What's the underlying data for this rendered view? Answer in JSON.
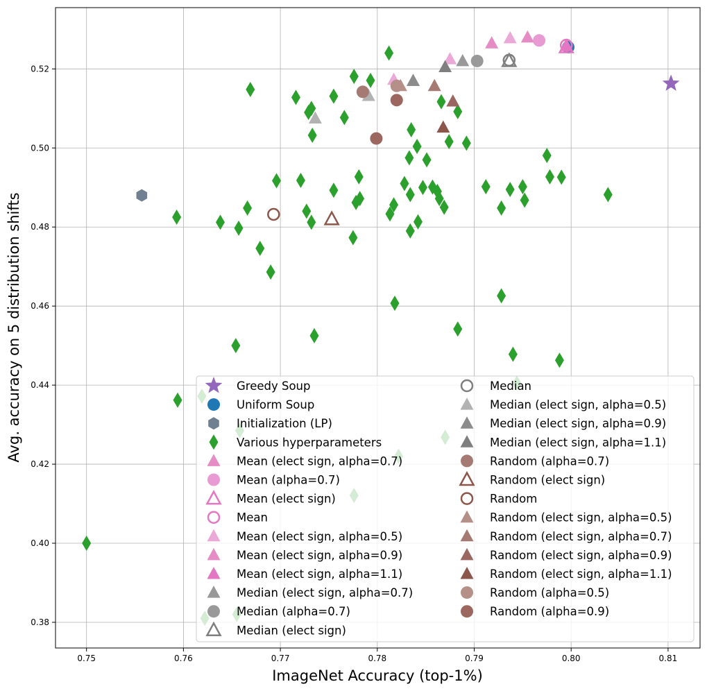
{
  "chart_data": {
    "type": "scatter",
    "xlabel": "ImageNet Accuracy (top-1%)",
    "ylabel": "Avg. accuracy on 5 distribution shifts",
    "xlim": [
      0.7468,
      0.8133
    ],
    "ylim": [
      0.3735,
      0.5355
    ],
    "xticks": [
      0.75,
      0.76,
      0.77,
      0.78,
      0.79,
      0.8,
      0.81
    ],
    "xtick_labels": [
      "0.75",
      "0.76",
      "0.77",
      "0.78",
      "0.79",
      "0.80",
      "0.81"
    ],
    "yticks": [
      0.38,
      0.4,
      0.42,
      0.44,
      0.46,
      0.48,
      0.5,
      0.52
    ],
    "ytick_labels": [
      "0.38",
      "0.40",
      "0.42",
      "0.44",
      "0.46",
      "0.48",
      "0.50",
      "0.52"
    ],
    "grid": true,
    "legend_position": "lower-right",
    "series": [
      {
        "name": "Greedy Soup",
        "marker": "star",
        "color": "#9467bd",
        "fill": true,
        "points": [
          [
            0.8103,
            0.5163
          ]
        ]
      },
      {
        "name": "Uniform Soup",
        "marker": "circle",
        "color": "#1f77b4",
        "fill": true,
        "points": [
          [
            0.7997,
            0.5255
          ]
        ]
      },
      {
        "name": "Initialization (LP)",
        "marker": "hexagon",
        "color": "#708090",
        "fill": true,
        "points": [
          [
            0.7557,
            0.488
          ]
        ]
      },
      {
        "name": "Various hyperparameters",
        "marker": "thin_diamond",
        "color": "#2ca02c",
        "fill": true,
        "points": [
          [
            0.75,
            0.4
          ],
          [
            0.7593,
            0.4825
          ],
          [
            0.7594,
            0.4362
          ],
          [
            0.7619,
            0.4372
          ],
          [
            0.7622,
            0.381
          ],
          [
            0.7638,
            0.4812
          ],
          [
            0.7654,
            0.45
          ],
          [
            0.7655,
            0.382
          ],
          [
            0.7657,
            0.4797
          ],
          [
            0.7658,
            0.4285
          ],
          [
            0.7666,
            0.4848
          ],
          [
            0.7669,
            0.5148
          ],
          [
            0.7679,
            0.4746
          ],
          [
            0.769,
            0.4686
          ],
          [
            0.7696,
            0.4917
          ],
          [
            0.7716,
            0.5128
          ],
          [
            0.7721,
            0.4918
          ],
          [
            0.7727,
            0.484
          ],
          [
            0.7729,
            0.509
          ],
          [
            0.7732,
            0.51
          ],
          [
            0.7732,
            0.4812
          ],
          [
            0.7733,
            0.5032
          ],
          [
            0.7735,
            0.4525
          ],
          [
            0.7755,
            0.5131
          ],
          [
            0.7755,
            0.4893
          ],
          [
            0.7766,
            0.5077
          ],
          [
            0.7775,
            0.4773
          ],
          [
            0.7776,
            0.5181
          ],
          [
            0.7776,
            0.4121
          ],
          [
            0.7778,
            0.4862
          ],
          [
            0.7781,
            0.4927
          ],
          [
            0.7782,
            0.4872
          ],
          [
            0.7793,
            0.5171
          ],
          [
            0.7812,
            0.524
          ],
          [
            0.7813,
            0.4833
          ],
          [
            0.7817,
            0.4856
          ],
          [
            0.7818,
            0.4607
          ],
          [
            0.7822,
            0.422
          ],
          [
            0.7828,
            0.491
          ],
          [
            0.7833,
            0.4975
          ],
          [
            0.7834,
            0.4882
          ],
          [
            0.7834,
            0.479
          ],
          [
            0.7835,
            0.5046
          ],
          [
            0.7841,
            0.5004
          ],
          [
            0.7842,
            0.4813
          ],
          [
            0.7847,
            0.49
          ],
          [
            0.7851,
            0.497
          ],
          [
            0.7857,
            0.4901
          ],
          [
            0.7862,
            0.489
          ],
          [
            0.7864,
            0.4872
          ],
          [
            0.7866,
            0.5117
          ],
          [
            0.7869,
            0.485
          ],
          [
            0.787,
            0.4268
          ],
          [
            0.7874,
            0.5016
          ],
          [
            0.7883,
            0.4542
          ],
          [
            0.7883,
            0.5092
          ],
          [
            0.7892,
            0.5012
          ],
          [
            0.7912,
            0.4902
          ],
          [
            0.7928,
            0.4848
          ],
          [
            0.7928,
            0.4626
          ],
          [
            0.7937,
            0.4895
          ],
          [
            0.794,
            0.4478
          ],
          [
            0.7944,
            0.4405
          ],
          [
            0.795,
            0.4902
          ],
          [
            0.7952,
            0.4868
          ],
          [
            0.7975,
            0.4981
          ],
          [
            0.7978,
            0.4927
          ],
          [
            0.7988,
            0.4463
          ],
          [
            0.799,
            0.4926
          ],
          [
            0.8038,
            0.4882
          ]
        ]
      },
      {
        "name": "Mean (elect sign, alpha=0.7)",
        "marker": "triangle",
        "color": "#e58cc5",
        "fill": true,
        "points": [
          [
            0.7918,
            0.5265
          ]
        ]
      },
      {
        "name": "Mean (alpha=0.7)",
        "marker": "circle",
        "color": "#e89ad2",
        "fill": true,
        "points": [
          [
            0.7967,
            0.5272
          ]
        ]
      },
      {
        "name": "Mean (elect sign)",
        "marker": "triangle",
        "color": "#e377c2",
        "fill": false,
        "points": [
          [
            0.7995,
            0.5255
          ]
        ]
      },
      {
        "name": "Mean",
        "marker": "circle",
        "color": "#e377c2",
        "fill": false,
        "points": [
          [
            0.7995,
            0.526
          ]
        ]
      },
      {
        "name": "Mean (elect sign, alpha=0.5)",
        "marker": "triangle",
        "color": "#eaa9d6",
        "fill": true,
        "points": [
          [
            0.7875,
            0.5225
          ],
          [
            0.7937,
            0.5278
          ],
          [
            0.7817,
            0.5173
          ]
        ]
      },
      {
        "name": "Mean (elect sign, alpha=0.9)",
        "marker": "triangle",
        "color": "#e58cc5",
        "fill": true,
        "points": [
          [
            0.7955,
            0.528
          ]
        ]
      },
      {
        "name": "Mean (elect sign, alpha=1.1)",
        "marker": "triangle",
        "color": "#e377c2",
        "fill": true,
        "points": [
          [
            0.7995,
            0.5258
          ]
        ]
      },
      {
        "name": "Median (elect sign, alpha=0.7)",
        "marker": "triangle",
        "color": "#999999",
        "fill": true,
        "points": [
          [
            0.7888,
            0.522
          ],
          [
            0.7837,
            0.517
          ]
        ]
      },
      {
        "name": "Median (alpha=0.7)",
        "marker": "circle",
        "color": "#999999",
        "fill": true,
        "points": [
          [
            0.7903,
            0.522
          ]
        ]
      },
      {
        "name": "Median (elect sign)",
        "marker": "triangle",
        "color": "#7f7f7f",
        "fill": false,
        "points": [
          [
            0.7936,
            0.522
          ]
        ]
      },
      {
        "name": "Median",
        "marker": "circle",
        "color": "#7f7f7f",
        "fill": false,
        "points": [
          [
            0.7936,
            0.5222
          ]
        ]
      },
      {
        "name": "Median (elect sign, alpha=0.5)",
        "marker": "triangle",
        "color": "#b2b2b2",
        "fill": true,
        "points": [
          [
            0.7736,
            0.5075
          ],
          [
            0.7791,
            0.5132
          ]
        ]
      },
      {
        "name": "Median (elect sign, alpha=0.9)",
        "marker": "triangle",
        "color": "#8c8c8c",
        "fill": true,
        "points": [
          [
            0.7837,
            0.517
          ]
        ]
      },
      {
        "name": "Median (elect sign, alpha=1.1)",
        "marker": "triangle",
        "color": "#7f7f7f",
        "fill": true,
        "points": [
          [
            0.787,
            0.5205
          ]
        ]
      },
      {
        "name": "Random (alpha=0.7)",
        "marker": "circle",
        "color": "#a57a72",
        "fill": true,
        "points": [
          [
            0.7785,
            0.5142
          ]
        ]
      },
      {
        "name": "Random (elect sign)",
        "marker": "triangle",
        "color": "#8c564b",
        "fill": false,
        "points": [
          [
            0.7753,
            0.482
          ]
        ]
      },
      {
        "name": "Random",
        "marker": "circle",
        "color": "#8c564b",
        "fill": false,
        "points": [
          [
            0.7693,
            0.4832
          ]
        ]
      },
      {
        "name": "Random (elect sign, alpha=0.5)",
        "marker": "triangle",
        "color": "#b59089",
        "fill": true,
        "points": [
          [
            0.7824,
            0.5157
          ]
        ]
      },
      {
        "name": "Random (elect sign, alpha=0.7)",
        "marker": "triangle",
        "color": "#a57a72",
        "fill": true,
        "points": [
          [
            0.7859,
            0.5157
          ]
        ]
      },
      {
        "name": "Random (elect sign, alpha=0.9)",
        "marker": "triangle",
        "color": "#996760",
        "fill": true,
        "points": [
          [
            0.7878,
            0.5118
          ]
        ]
      },
      {
        "name": "Random (elect sign, alpha=1.1)",
        "marker": "triangle",
        "color": "#8c564b",
        "fill": true,
        "points": [
          [
            0.7868,
            0.5052
          ]
        ]
      },
      {
        "name": "Random (alpha=0.5)",
        "marker": "circle",
        "color": "#b59089",
        "fill": true,
        "points": [
          [
            0.782,
            0.5157
          ]
        ]
      },
      {
        "name": "Random (alpha=0.9)",
        "marker": "circle",
        "color": "#9c675f",
        "fill": true,
        "points": [
          [
            0.7799,
            0.5024
          ],
          [
            0.782,
            0.5121
          ]
        ]
      }
    ]
  }
}
